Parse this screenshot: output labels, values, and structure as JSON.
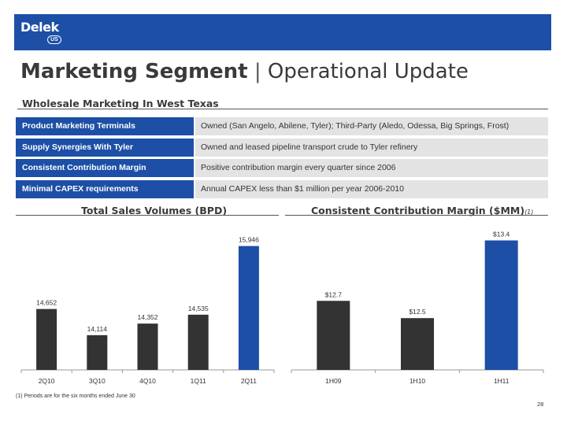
{
  "header": {
    "logo_text": "Delek",
    "logo_badge": "US",
    "title_bold": "Marketing Segment",
    "title_sep": "|",
    "title_rest": "Operational Update",
    "subtitle": "Wholesale Marketing In West Texas",
    "colors": {
      "brand_blue": "#1d4fa6",
      "row_gray": "#e3e3e3",
      "bar_dark": "#333333",
      "bar_highlight": "#1d4fa6"
    }
  },
  "table": [
    {
      "label": "Product Marketing Terminals",
      "value": "Owned (San Angelo, Abilene, Tyler); Third-Party (Aledo, Odessa, Big Springs, Frost)"
    },
    {
      "label": "Supply Synergies With Tyler",
      "value": "Owned and leased pipeline transport crude to Tyler refinery"
    },
    {
      "label": "Consistent Contribution Margin",
      "value": "Positive contribution margin every quarter since 2006"
    },
    {
      "label": "Minimal CAPEX requirements",
      "value": "Annual CAPEX less than $1 million per year 2006-2010"
    }
  ],
  "chart_data": [
    {
      "type": "bar",
      "title": "Total Sales Volumes (BPD)",
      "categories": [
        "2Q10",
        "3Q10",
        "4Q10",
        "1Q11",
        "2Q11"
      ],
      "values": [
        14652,
        14114,
        14352,
        14535,
        15946
      ],
      "labels": [
        "14,652",
        "14,114",
        "14,352",
        "14,535",
        "15,946"
      ],
      "ylim": [
        13400,
        16150
      ],
      "highlight_index": 4,
      "grid": false,
      "xlabel": "",
      "ylabel": ""
    },
    {
      "type": "bar",
      "title": "Consistent Contribution Margin ($MM)",
      "title_footnote": "(1)",
      "categories": [
        "1H09",
        "1H10",
        "1H11"
      ],
      "values": [
        12.7,
        12.5,
        13.4
      ],
      "labels": [
        "$12.7",
        "$12.5",
        "$13.4"
      ],
      "ylim": [
        11.9,
        13.45
      ],
      "highlight_index": 2,
      "grid": false,
      "xlabel": "",
      "ylabel": ""
    }
  ],
  "footer": {
    "footnote": "(1)  Periods are for the six months ended June 30",
    "page_number": "28"
  }
}
